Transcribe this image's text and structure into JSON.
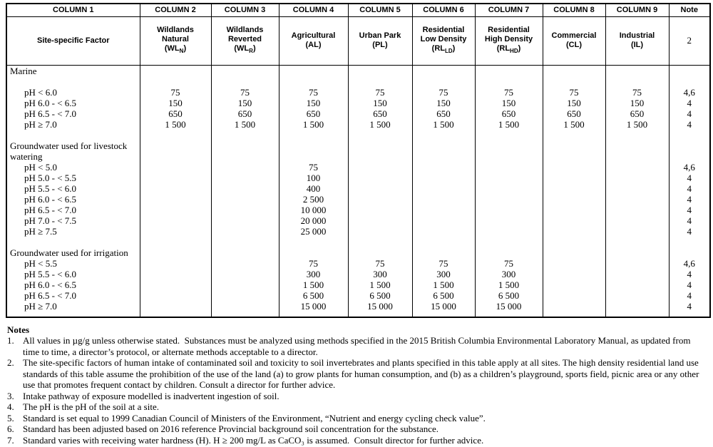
{
  "document": {
    "background": "#ffffff",
    "text_color": "#000000"
  },
  "table": {
    "columns": [
      {
        "id": "COLUMN 1",
        "title": "Site-specific Factor"
      },
      {
        "id": "COLUMN 2",
        "line1": "Wildlands",
        "line2": "Natural",
        "abbr_pre": "(WL",
        "abbr_sub": "N",
        "abbr_post": ")"
      },
      {
        "id": "COLUMN 3",
        "line1": "Wildlands",
        "line2": "Reverted",
        "abbr_pre": "(WL",
        "abbr_sub": "R",
        "abbr_post": ")"
      },
      {
        "id": "COLUMN 4",
        "line1": "Agricultural",
        "abbr_pre": "(AL)"
      },
      {
        "id": "COLUMN 5",
        "line1": "Urban Park",
        "abbr_pre": "(PL)"
      },
      {
        "id": "COLUMN 6",
        "line1": "Residential",
        "line2": "Low Density",
        "abbr_pre": "(RL",
        "abbr_sub": "LD",
        "abbr_post": ")"
      },
      {
        "id": "COLUMN 7",
        "line1": "Residential",
        "line2": "High Density",
        "abbr_pre": "(RL",
        "abbr_sub": "HD",
        "abbr_post": ")"
      },
      {
        "id": "COLUMN 8",
        "line1": "Commercial",
        "abbr_pre": "(CL)"
      },
      {
        "id": "COLUMN 9",
        "line1": "Industrial",
        "abbr_pre": "(IL)"
      },
      {
        "id": "Note",
        "title": "2"
      }
    ],
    "sections": [
      {
        "title_lines": [
          "Marine"
        ],
        "pre_gap": false,
        "title_gap": true,
        "rows": [
          {
            "label": "pH < 6.0",
            "values": [
              "75",
              "75",
              "75",
              "75",
              "75",
              "75",
              "75",
              "75"
            ],
            "note": "4,6"
          },
          {
            "label": "pH 6.0 - < 6.5",
            "values": [
              "150",
              "150",
              "150",
              "150",
              "150",
              "150",
              "150",
              "150"
            ],
            "note": "4"
          },
          {
            "label": "pH 6.5 - < 7.0",
            "values": [
              "650",
              "650",
              "650",
              "650",
              "650",
              "650",
              "650",
              "650"
            ],
            "note": "4"
          },
          {
            "label": "pH ≥ 7.0",
            "values": [
              "1 500",
              "1 500",
              "1 500",
              "1 500",
              "1 500",
              "1 500",
              "1 500",
              "1 500"
            ],
            "note": "4"
          }
        ]
      },
      {
        "title_lines": [
          "Groundwater used for livestock",
          "watering"
        ],
        "pre_gap": true,
        "title_gap": false,
        "rows": [
          {
            "label": "pH < 5.0",
            "values": [
              "",
              "",
              "75",
              "",
              "",
              "",
              "",
              ""
            ],
            "note": "4,6"
          },
          {
            "label": "pH 5.0 - < 5.5",
            "values": [
              "",
              "",
              "100",
              "",
              "",
              "",
              "",
              ""
            ],
            "note": "4"
          },
          {
            "label": "pH 5.5 - < 6.0",
            "values": [
              "",
              "",
              "400",
              "",
              "",
              "",
              "",
              ""
            ],
            "note": "4"
          },
          {
            "label": "pH 6.0 - < 6.5",
            "values": [
              "",
              "",
              "2 500",
              "",
              "",
              "",
              "",
              ""
            ],
            "note": "4"
          },
          {
            "label": "pH 6.5 - < 7.0",
            "values": [
              "",
              "",
              "10 000",
              "",
              "",
              "",
              "",
              ""
            ],
            "note": "4"
          },
          {
            "label": "pH 7.0 - < 7.5",
            "values": [
              "",
              "",
              "20 000",
              "",
              "",
              "",
              "",
              ""
            ],
            "note": "4"
          },
          {
            "label": "pH ≥ 7.5",
            "values": [
              "",
              "",
              "25 000",
              "",
              "",
              "",
              "",
              ""
            ],
            "note": "4"
          }
        ]
      },
      {
        "title_lines": [
          "Groundwater used for irrigation"
        ],
        "pre_gap": true,
        "title_gap": false,
        "rows": [
          {
            "label": "pH < 5.5",
            "values": [
              "",
              "",
              "75",
              "75",
              "75",
              "75",
              "",
              ""
            ],
            "note": "4,6"
          },
          {
            "label": "pH 5.5 - < 6.0",
            "values": [
              "",
              "",
              "300",
              "300",
              "300",
              "300",
              "",
              ""
            ],
            "note": "4"
          },
          {
            "label": "pH 6.0 - < 6.5",
            "values": [
              "",
              "",
              "1 500",
              "1 500",
              "1 500",
              "1 500",
              "",
              ""
            ],
            "note": "4"
          },
          {
            "label": "pH 6.5 - < 7.0",
            "values": [
              "",
              "",
              "6 500",
              "6 500",
              "6 500",
              "6 500",
              "",
              ""
            ],
            "note": "4"
          },
          {
            "label": "pH ≥ 7.0",
            "values": [
              "",
              "",
              "15 000",
              "15 000",
              "15 000",
              "15 000",
              "",
              ""
            ],
            "note": "4"
          }
        ]
      }
    ]
  },
  "notes": {
    "heading": "Notes",
    "items": [
      {
        "num": "1.",
        "text": "All values in µg/g unless otherwise stated.  Substances must be analyzed using methods specified in the 2015 British Columbia Environmental Laboratory Manual, as updated from time to time, a director’s protocol, or alternate methods acceptable to a director."
      },
      {
        "num": "2.",
        "text": "The site-specific factors of human intake of contaminated soil and toxicity to soil invertebrates and plants specified in this table apply at all sites. The high density residential land use standards of this table assume the prohibition of the use of the land (a) to grow plants for human consumption, and (b) as a children’s playground, sports field, picnic area or any other use that promotes frequent contact by children. Consult a director for further advice."
      },
      {
        "num": "3.",
        "text": "Intake pathway of exposure modelled is inadvertent ingestion of soil."
      },
      {
        "num": "4.",
        "text": "The pH is the pH of the soil at a site."
      },
      {
        "num": "5.",
        "text": "Standard is set equal to 1999 Canadian Council of Ministers of the Environment, “Nutrient and energy cycling check value”."
      },
      {
        "num": "6.",
        "text": "Standard has been adjusted based on 2016 reference Provincial background soil concentration for the substance."
      },
      {
        "num": "7.",
        "text": "Standard varies with receiving water hardness (H). H ≥ 200 mg/L as CaCO₃ is assumed.  Consult director for further advice."
      }
    ]
  }
}
